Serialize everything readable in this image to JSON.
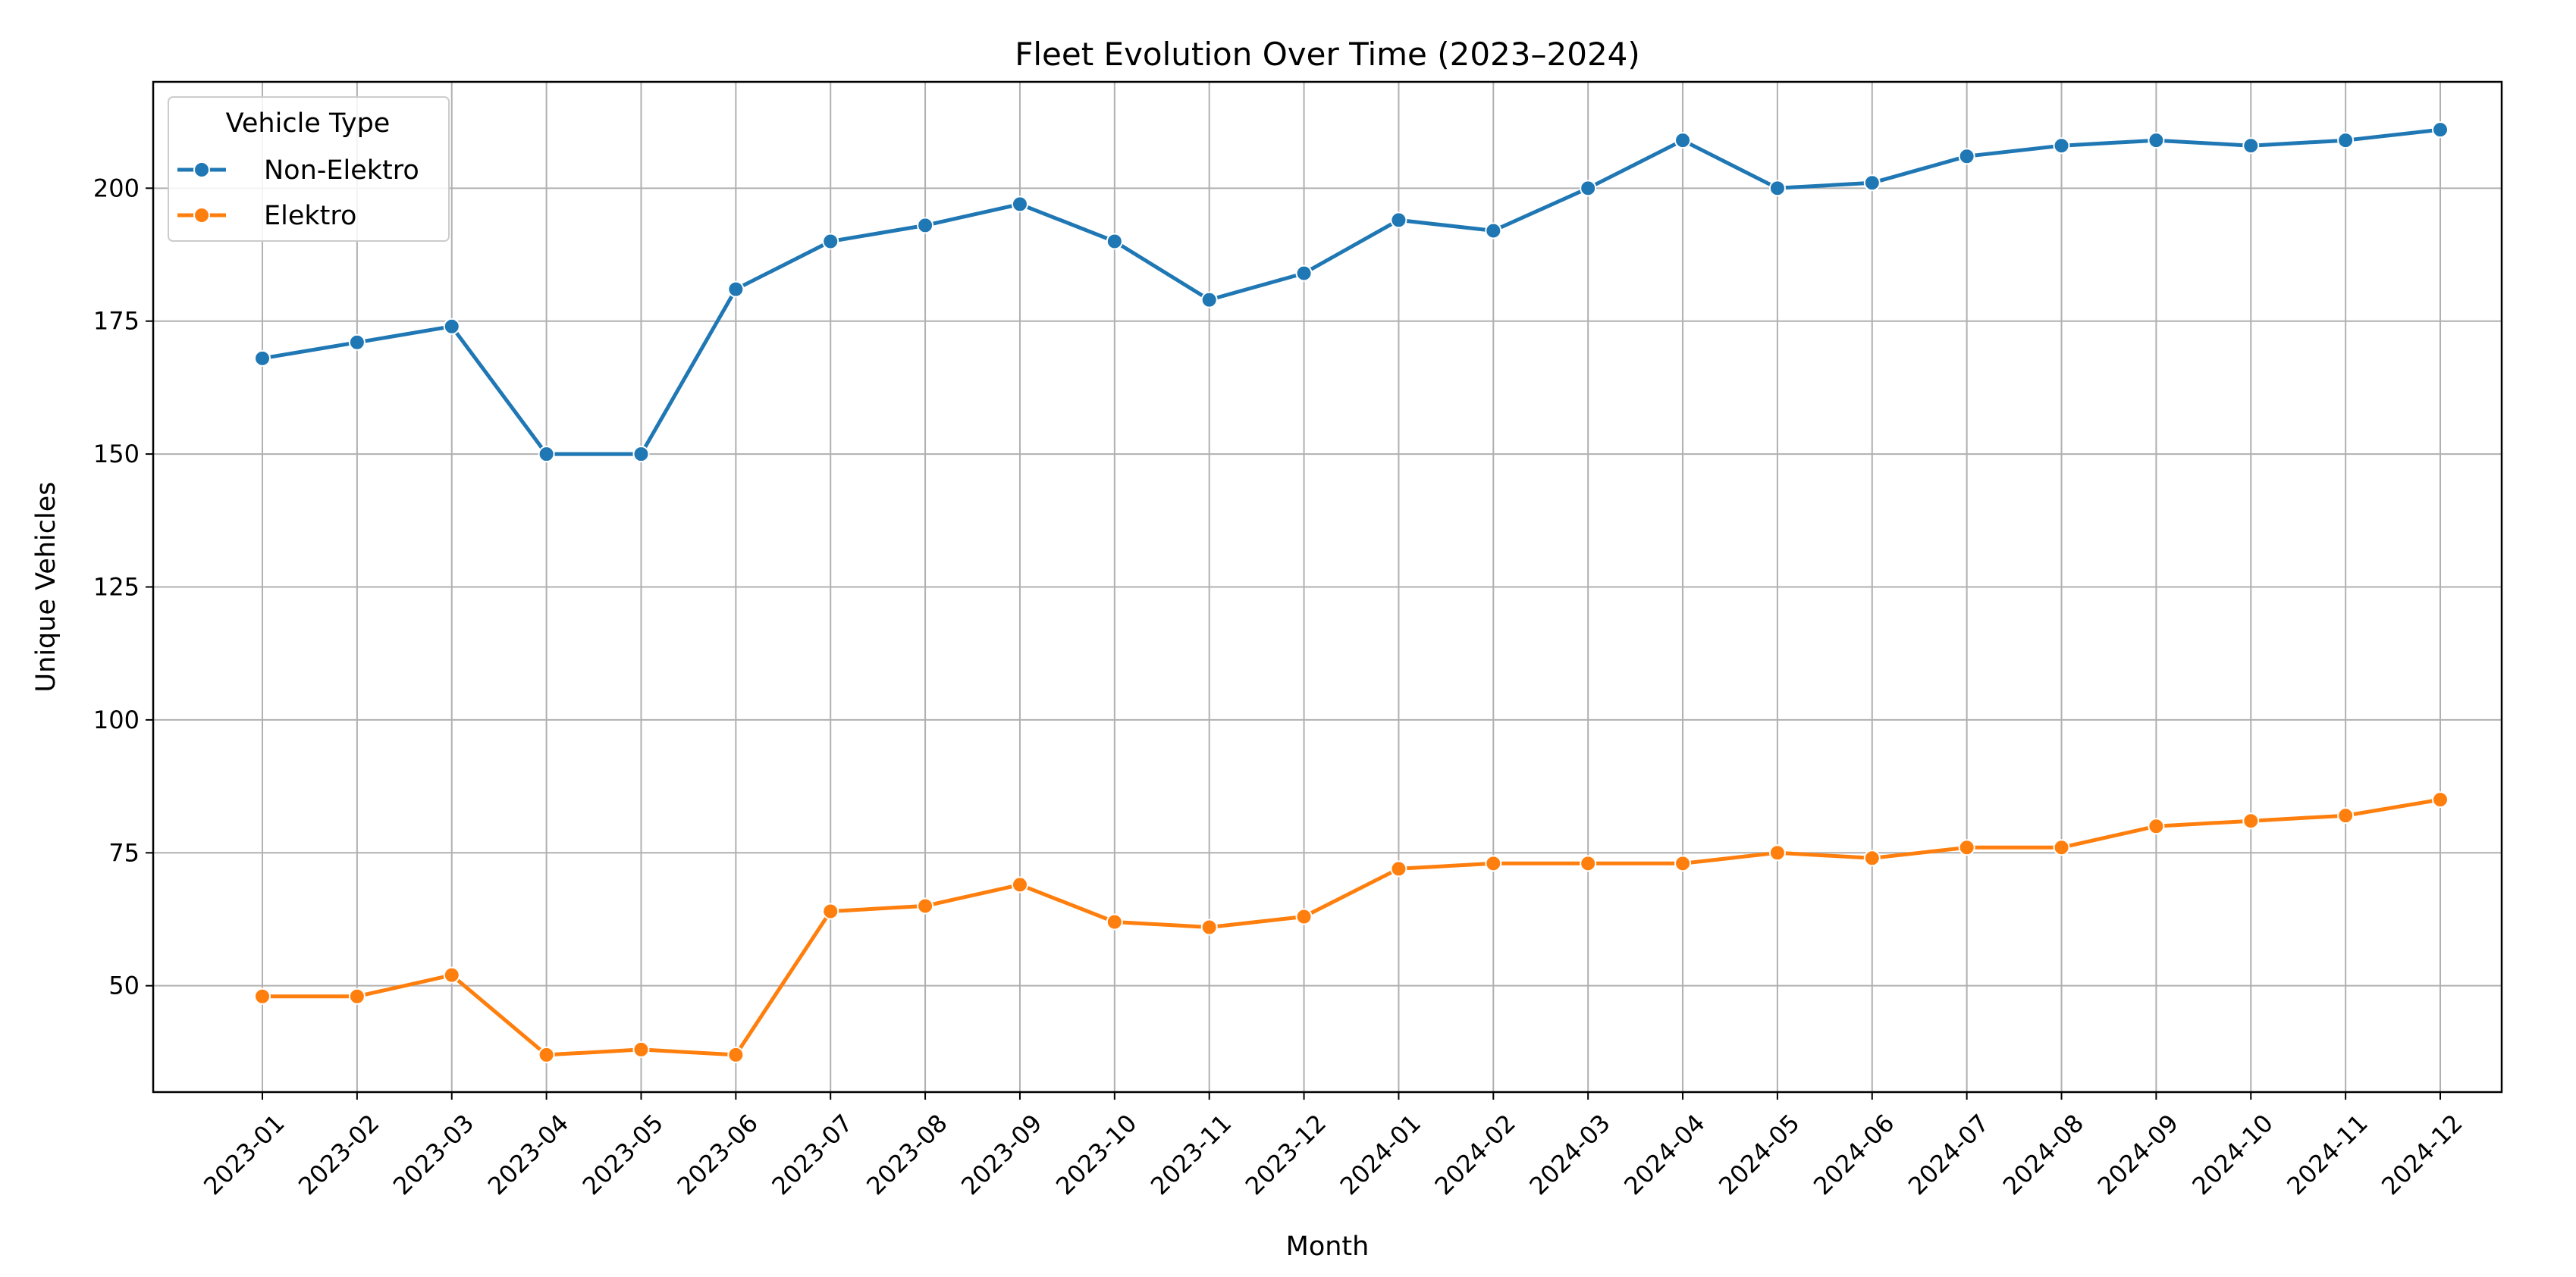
{
  "chart_data": {
    "type": "line",
    "title": "Fleet Evolution Over Time (2023–2024)",
    "xlabel": "Month",
    "ylabel": "Unique Vehicles",
    "categories": [
      "2023-01",
      "2023-02",
      "2023-03",
      "2023-04",
      "2023-05",
      "2023-06",
      "2023-07",
      "2023-08",
      "2023-09",
      "2023-10",
      "2023-11",
      "2023-12",
      "2024-01",
      "2024-02",
      "2024-03",
      "2024-04",
      "2024-05",
      "2024-06",
      "2024-07",
      "2024-08",
      "2024-09",
      "2024-10",
      "2024-11",
      "2024-12"
    ],
    "ylim": [
      30,
      220
    ],
    "yticks": [
      50,
      75,
      100,
      125,
      150,
      175,
      200
    ],
    "grid": true,
    "legend": {
      "title": "Vehicle Type",
      "placement": "top-left"
    },
    "series": [
      {
        "name": "Non-Elektro",
        "color": "#1f77b4",
        "values": [
          168,
          171,
          174,
          150,
          150,
          181,
          190,
          193,
          197,
          190,
          179,
          184,
          194,
          192,
          200,
          209,
          200,
          201,
          206,
          208,
          209,
          208,
          209,
          211
        ]
      },
      {
        "name": "Elektro",
        "color": "#ff7f0e",
        "values": [
          48,
          48,
          52,
          37,
          38,
          37,
          64,
          65,
          69,
          62,
          61,
          63,
          72,
          73,
          73,
          73,
          75,
          74,
          76,
          76,
          80,
          81,
          82,
          85
        ]
      }
    ]
  }
}
